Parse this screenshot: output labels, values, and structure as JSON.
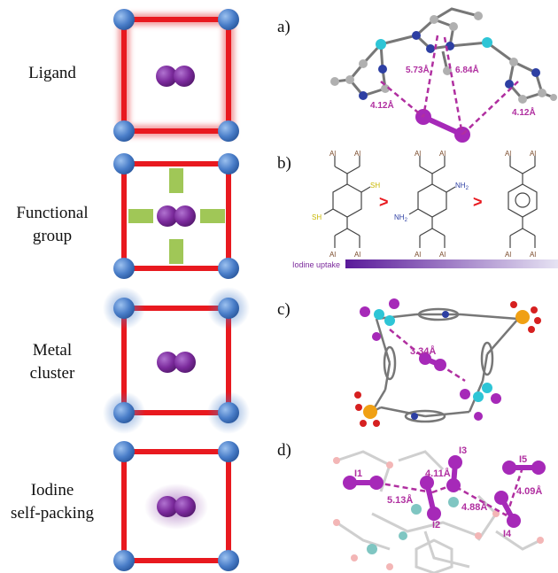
{
  "rows": [
    {
      "label_line1": "Ligand",
      "label_line2": ""
    },
    {
      "label_line1": "Functional",
      "label_line2": "group"
    },
    {
      "label_line1": "Metal",
      "label_line2": "cluster"
    },
    {
      "label_line1": "Iodine",
      "label_line2": "self-packing"
    }
  ],
  "panels": {
    "a": {
      "letter": "a)",
      "d1": "5.73Å",
      "d2": "6.84Å",
      "d3": "4.12Å",
      "d4": "4.12Å"
    },
    "b": {
      "letter": "b)",
      "al": "Al",
      "sh": "SH",
      "nh2": "NH",
      "nh2_sub": "2",
      "gt": ">",
      "uptake": "Iodine uptake"
    },
    "c": {
      "letter": "c)",
      "d1": "3.34Å"
    },
    "d": {
      "letter": "d)",
      "i1": "I1",
      "i2": "I2",
      "i3": "I3",
      "i4": "I4",
      "i5": "I5",
      "d1": "5.13Å",
      "d2": "4.11Å",
      "d3": "4.88Å",
      "d4": "4.09Å"
    }
  },
  "colors": {
    "frame_red": "#e8191f",
    "node_blue": "#4a7ec9",
    "iodine_purple": "#7b2a9c",
    "label_magenta": "#b02fa0",
    "functional_green": "#8fbd3a"
  }
}
